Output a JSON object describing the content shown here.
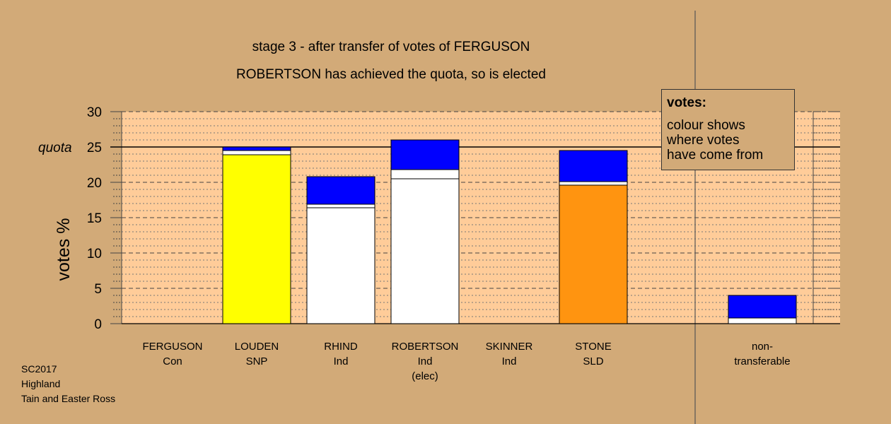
{
  "chart_data": {
    "type": "bar",
    "stacked": true,
    "title": "stage 3 - after transfer of votes of FERGUSON",
    "subtitle": "ROBERTSON has achieved the quota, so is elected",
    "ylabel": "votes %",
    "ylim": [
      0,
      30
    ],
    "yticks": [
      "0",
      "5",
      "10",
      "15",
      "20",
      "25",
      "30"
    ],
    "quota": 25,
    "quota_label": "quota",
    "grid": true,
    "categories": [
      {
        "lines": [
          "FERGUSON",
          "Con"
        ]
      },
      {
        "lines": [
          "LOUDEN",
          "SNP"
        ]
      },
      {
        "lines": [
          "RHIND",
          "Ind"
        ]
      },
      {
        "lines": [
          "ROBERTSON",
          "Ind",
          "(elec)"
        ]
      },
      {
        "lines": [
          "SKINNER",
          "Ind"
        ]
      },
      {
        "lines": [
          "STONE",
          "SLD"
        ]
      },
      {
        "lines": [
          "non-",
          "transferable"
        ]
      }
    ],
    "bars": [
      [],
      [
        {
          "value": 23.9,
          "color": "#ffff00"
        },
        {
          "value": 0.6,
          "color": "#ffffff"
        },
        {
          "value": 0.5,
          "color": "#0000ff"
        }
      ],
      [
        {
          "value": 16.4,
          "color": "#ffffff"
        },
        {
          "value": 0.5,
          "color": "#ffffff"
        },
        {
          "value": 3.9,
          "color": "#0000ff"
        }
      ],
      [
        {
          "value": 20.5,
          "color": "#ffffff"
        },
        {
          "value": 1.3,
          "color": "#ffffff"
        },
        {
          "value": 4.2,
          "color": "#0000ff"
        }
      ],
      [],
      [
        {
          "value": 19.6,
          "color": "#ff9410"
        },
        {
          "value": 0.5,
          "color": "#ffffff"
        },
        {
          "value": 4.4,
          "color": "#0000ff"
        }
      ],
      [
        {
          "value": 0.8,
          "color": "#ffffff"
        },
        {
          "value": 3.2,
          "color": "#0000ff"
        }
      ]
    ]
  },
  "legend": {
    "title": "votes:",
    "lines": [
      "colour shows",
      "where votes",
      "have come from"
    ]
  },
  "source": {
    "lines": [
      "SC2017",
      "Highland",
      "Tain and Easter Ross"
    ]
  },
  "colors": {
    "background": "#d2aa78",
    "plot_area": "#ffcc99",
    "transfer": "#0000ff"
  }
}
